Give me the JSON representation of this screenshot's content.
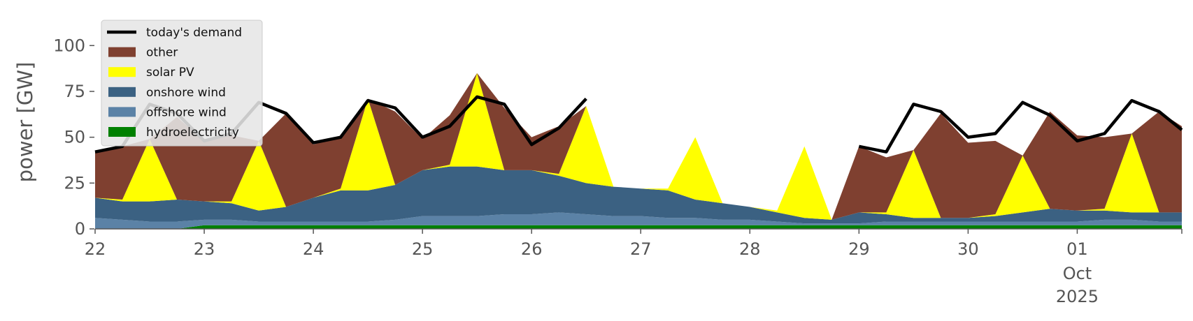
{
  "chart_data": {
    "type": "area",
    "ylabel": "power [GW]",
    "ylim": [
      0,
      118
    ],
    "xlim": [
      "2025-09-22T00:00",
      "2025-10-01T23:00"
    ],
    "grid": false,
    "legend_position": "top-left",
    "x_ticks": [
      {
        "date": "2025-09-22",
        "label": "22"
      },
      {
        "date": "2025-09-23",
        "label": "23"
      },
      {
        "date": "2025-09-24",
        "label": "24"
      },
      {
        "date": "2025-09-25",
        "label": "25"
      },
      {
        "date": "2025-09-26",
        "label": "26"
      },
      {
        "date": "2025-09-27",
        "label": "27"
      },
      {
        "date": "2025-09-28",
        "label": "28"
      },
      {
        "date": "2025-09-29",
        "label": "29"
      },
      {
        "date": "2025-09-30",
        "label": "30"
      },
      {
        "date": "2025-10-01",
        "label": "01",
        "label2": "Oct",
        "label3": "2025"
      }
    ],
    "y_ticks": [
      0,
      25,
      50,
      75,
      100
    ],
    "x": [
      "2025-09-22T00:00",
      "2025-09-22T06:00",
      "2025-09-22T12:00",
      "2025-09-22T18:00",
      "2025-09-23T00:00",
      "2025-09-23T06:00",
      "2025-09-23T12:00",
      "2025-09-23T18:00",
      "2025-09-24T00:00",
      "2025-09-24T06:00",
      "2025-09-24T12:00",
      "2025-09-24T18:00",
      "2025-09-25T00:00",
      "2025-09-25T06:00",
      "2025-09-25T12:00",
      "2025-09-25T18:00",
      "2025-09-26T00:00",
      "2025-09-26T06:00",
      "2025-09-26T12:00",
      "2025-09-26T18:00",
      "2025-09-27T00:00",
      "2025-09-27T06:00",
      "2025-09-27T12:00",
      "2025-09-27T18:00",
      "2025-09-28T00:00",
      "2025-09-28T06:00",
      "2025-09-28T12:00",
      "2025-09-28T18:00",
      "2025-09-29T00:00",
      "2025-09-29T06:00",
      "2025-09-29T12:00",
      "2025-09-29T18:00",
      "2025-09-30T00:00",
      "2025-09-30T06:00",
      "2025-09-30T12:00",
      "2025-09-30T18:00",
      "2025-10-01T00:00",
      "2025-10-01T06:00",
      "2025-10-01T12:00",
      "2025-10-01T18:00",
      "2025-10-01T23:00"
    ],
    "series": [
      {
        "name": "hydroelectricity",
        "color": "#008000",
        "values": [
          0,
          0,
          0,
          0,
          2,
          2,
          2,
          2,
          2,
          2,
          2,
          2,
          2,
          2,
          2,
          2,
          2,
          2,
          2,
          2,
          2,
          2,
          2,
          2,
          2,
          2,
          2,
          2,
          2,
          2,
          2,
          2,
          2,
          2,
          2,
          2,
          2,
          2,
          2,
          2,
          2
        ]
      },
      {
        "name": "offshore wind",
        "color": "#5b82a6",
        "values": [
          6,
          5,
          4,
          4,
          3,
          3,
          2,
          2,
          2,
          2,
          2,
          3,
          5,
          5,
          5,
          6,
          6,
          7,
          6,
          5,
          5,
          4,
          4,
          3,
          3,
          2,
          1,
          1,
          1,
          2,
          2,
          2,
          2,
          2,
          2,
          2,
          2,
          3,
          3,
          2,
          2
        ]
      },
      {
        "name": "onshore wind",
        "color": "#3b6182",
        "values": [
          11,
          10,
          11,
          12,
          10,
          9,
          6,
          8,
          13,
          17,
          17,
          19,
          25,
          27,
          27,
          24,
          24,
          20,
          17,
          16,
          15,
          15,
          10,
          9,
          7,
          5,
          3,
          2,
          6,
          4,
          2,
          2,
          2,
          3,
          5,
          7,
          6,
          5,
          4,
          5,
          5
        ]
      },
      {
        "name": "solar PV",
        "color": "#ffff00",
        "values": [
          0,
          1,
          34,
          0,
          0,
          1,
          38,
          0,
          0,
          1,
          50,
          0,
          0,
          1,
          51,
          0,
          0,
          1,
          42,
          0,
          0,
          1,
          34,
          0,
          0,
          1,
          39,
          0,
          0,
          1,
          37,
          0,
          0,
          1,
          31,
          0,
          0,
          1,
          43,
          0,
          0
        ]
      },
      {
        "name": "other",
        "color": "#7f4030",
        "values": [
          25,
          29,
          0,
          45,
          33,
          36,
          0,
          51,
          29,
          28,
          0,
          40,
          17,
          27,
          0,
          34,
          18,
          26,
          0,
          0,
          0,
          0,
          0,
          0,
          0,
          0,
          0,
          0,
          36,
          30,
          0,
          57,
          41,
          40,
          0,
          53,
          41,
          39,
          0,
          55,
          47
        ]
      },
      {
        "name": "today's demand",
        "color": "#000000",
        "line": true,
        "values": [
          42,
          45,
          68,
          63,
          48,
          52,
          69,
          63,
          47,
          50,
          70,
          66,
          50,
          56,
          72,
          68,
          46,
          55,
          71,
          null,
          null,
          null,
          null,
          null,
          null,
          null,
          null,
          null,
          45,
          42,
          68,
          64,
          50,
          52,
          69,
          62,
          48,
          52,
          70,
          64,
          54
        ]
      }
    ]
  }
}
